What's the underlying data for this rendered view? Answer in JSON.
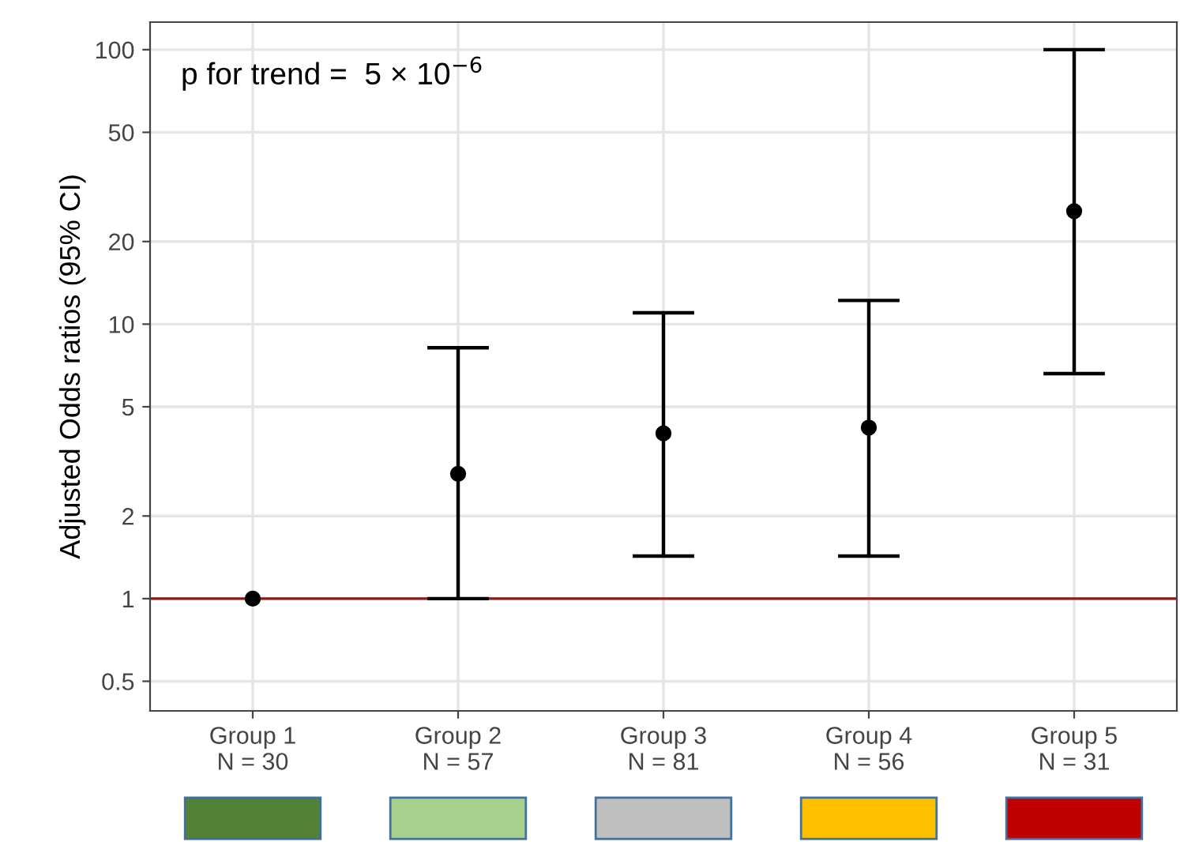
{
  "chart_data": {
    "type": "scatter",
    "ylabel": "Adjusted Odds ratios (95% CI)",
    "categories": [
      "Group 1\nN = 30",
      "Group 2\nN = 57",
      "Group 3\nN = 81",
      "Group 4\nN = 56",
      "Group 5\nN = 31"
    ],
    "series": [
      {
        "color": "#000000",
        "values": [
          1,
          2.85,
          4.0,
          4.2,
          25.8
        ],
        "errors": [
          null,
          [
            1.0,
            8.2
          ],
          [
            1.43,
            11
          ],
          [
            1.43,
            12.2
          ],
          [
            6.6,
            100
          ]
        ]
      }
    ],
    "colors": [
      "#538135",
      "#a9d18e",
      "#bfbfbf",
      "#ffc000",
      "#c00000"
    ],
    "log": true,
    "ylim": [
      0.39,
      126
    ],
    "yticks": [
      0.5,
      1,
      2,
      5,
      10,
      20,
      50,
      100
    ],
    "ref_lines": [
      {
        "axis": "y",
        "value": 1,
        "color": "#8b1a1a"
      }
    ],
    "annotations": [
      "p for trend =  5 × 10$^{−6}$"
    ],
    "grid": true,
    "marker": "circle"
  }
}
